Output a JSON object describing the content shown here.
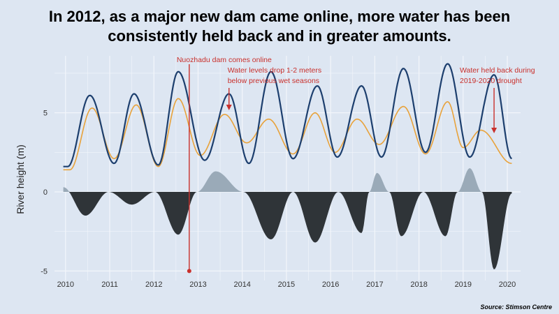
{
  "headline": {
    "line1": "In 2012, as a major new dam came online, more water has been",
    "line2": "consistently held back and in greater amounts."
  },
  "source": "Source: Stimson Centre",
  "colors": {
    "background": "#dde6f2",
    "actual_line": "#1d3f6e",
    "natural_line": "#e8a23a",
    "surplus_area": "#9aaab8",
    "deficit_area": "#2f3438",
    "annotation": "#c9302c",
    "grid": "#f3f6fb"
  },
  "chart_data": {
    "type": "line",
    "title": "",
    "xlabel": "",
    "ylabel": "River height (m)",
    "xlim": [
      2009.75,
      2020.3
    ],
    "ylim": [
      -5.6,
      8.6
    ],
    "x_ticks": [
      {
        "value": 2010,
        "label": "2010"
      },
      {
        "value": 2011,
        "label": "2011"
      },
      {
        "value": 2012,
        "label": "2012"
      },
      {
        "value": 2013,
        "label": "2013"
      },
      {
        "value": 2014,
        "label": "2014"
      },
      {
        "value": 2015,
        "label": "2015"
      },
      {
        "value": 2016,
        "label": "2016"
      },
      {
        "value": 2017,
        "label": "2017"
      },
      {
        "value": 2018,
        "label": "2018"
      },
      {
        "value": 2019,
        "label": "2019"
      },
      {
        "value": 2020,
        "label": "2020"
      }
    ],
    "y_ticks": [
      {
        "value": -5,
        "label": "-5"
      },
      {
        "value": 0,
        "label": "0"
      },
      {
        "value": 5,
        "label": "5"
      }
    ],
    "grid": true,
    "legend": "none",
    "peaks": {
      "actual": [
        {
          "x": 2010.55,
          "y": 6.1
        },
        {
          "x": 2011.55,
          "y": 6.2
        },
        {
          "x": 2012.55,
          "y": 7.6
        },
        {
          "x": 2013.7,
          "y": 6.2
        },
        {
          "x": 2014.65,
          "y": 7.6
        },
        {
          "x": 2015.7,
          "y": 6.7
        },
        {
          "x": 2016.7,
          "y": 6.7
        },
        {
          "x": 2017.65,
          "y": 7.8
        },
        {
          "x": 2018.65,
          "y": 8.1
        },
        {
          "x": 2019.7,
          "y": 7.4
        }
      ],
      "actual_troughs": [
        {
          "x": 2010.05,
          "y": 1.6
        },
        {
          "x": 2011.1,
          "y": 1.8
        },
        {
          "x": 2012.1,
          "y": 1.7
        },
        {
          "x": 2013.15,
          "y": 2.0
        },
        {
          "x": 2014.15,
          "y": 1.8
        },
        {
          "x": 2015.15,
          "y": 2.1
        },
        {
          "x": 2016.15,
          "y": 2.2
        },
        {
          "x": 2017.15,
          "y": 2.2
        },
        {
          "x": 2018.15,
          "y": 2.5
        },
        {
          "x": 2019.15,
          "y": 2.2
        },
        {
          "x": 2020.1,
          "y": 2.1
        }
      ],
      "natural": [
        {
          "x": 2010.6,
          "y": 5.3
        },
        {
          "x": 2011.6,
          "y": 5.5
        },
        {
          "x": 2012.55,
          "y": 5.9
        },
        {
          "x": 2013.6,
          "y": 4.9
        },
        {
          "x": 2014.6,
          "y": 4.6
        },
        {
          "x": 2015.65,
          "y": 5.0
        },
        {
          "x": 2016.6,
          "y": 4.6
        },
        {
          "x": 2017.65,
          "y": 5.4
        },
        {
          "x": 2018.65,
          "y": 5.7
        },
        {
          "x": 2019.4,
          "y": 3.9
        }
      ],
      "natural_troughs": [
        {
          "x": 2010.1,
          "y": 1.4
        },
        {
          "x": 2011.1,
          "y": 2.1
        },
        {
          "x": 2012.1,
          "y": 1.6
        },
        {
          "x": 2013.05,
          "y": 2.3
        },
        {
          "x": 2014.1,
          "y": 3.1
        },
        {
          "x": 2015.15,
          "y": 2.4
        },
        {
          "x": 2016.1,
          "y": 2.5
        },
        {
          "x": 2017.1,
          "y": 3.0
        },
        {
          "x": 2018.15,
          "y": 2.4
        },
        {
          "x": 2019.0,
          "y": 2.8
        },
        {
          "x": 2020.1,
          "y": 1.8
        }
      ],
      "difference_extremes": [
        {
          "x": 2010.45,
          "y": -1.5
        },
        {
          "x": 2011.5,
          "y": -0.8
        },
        {
          "x": 2012.55,
          "y": -2.7
        },
        {
          "x": 2013.4,
          "y": 1.3
        },
        {
          "x": 2014.65,
          "y": -3.0
        },
        {
          "x": 2015.65,
          "y": -3.2
        },
        {
          "x": 2016.7,
          "y": -2.6
        },
        {
          "x": 2017.05,
          "y": 1.2
        },
        {
          "x": 2017.6,
          "y": -2.8
        },
        {
          "x": 2018.6,
          "y": -2.8
        },
        {
          "x": 2019.15,
          "y": 1.5
        },
        {
          "x": 2019.7,
          "y": -4.9
        }
      ]
    },
    "annotations": [
      {
        "id": "dam",
        "lines": [
          "Nuozhadu dam comes online"
        ],
        "x": 2012.8,
        "y_top": 8.6,
        "y_bottom": -5.0,
        "type": "vertical-line"
      },
      {
        "id": "drop",
        "lines": [
          "Water levels drop 1-2 meters",
          "below previous wet seasons"
        ],
        "x": 2013.7,
        "type": "arrow"
      },
      {
        "id": "drought",
        "lines": [
          "Water held back during",
          "2019-2020 drought"
        ],
        "x": 2019.7,
        "type": "arrow"
      }
    ]
  }
}
